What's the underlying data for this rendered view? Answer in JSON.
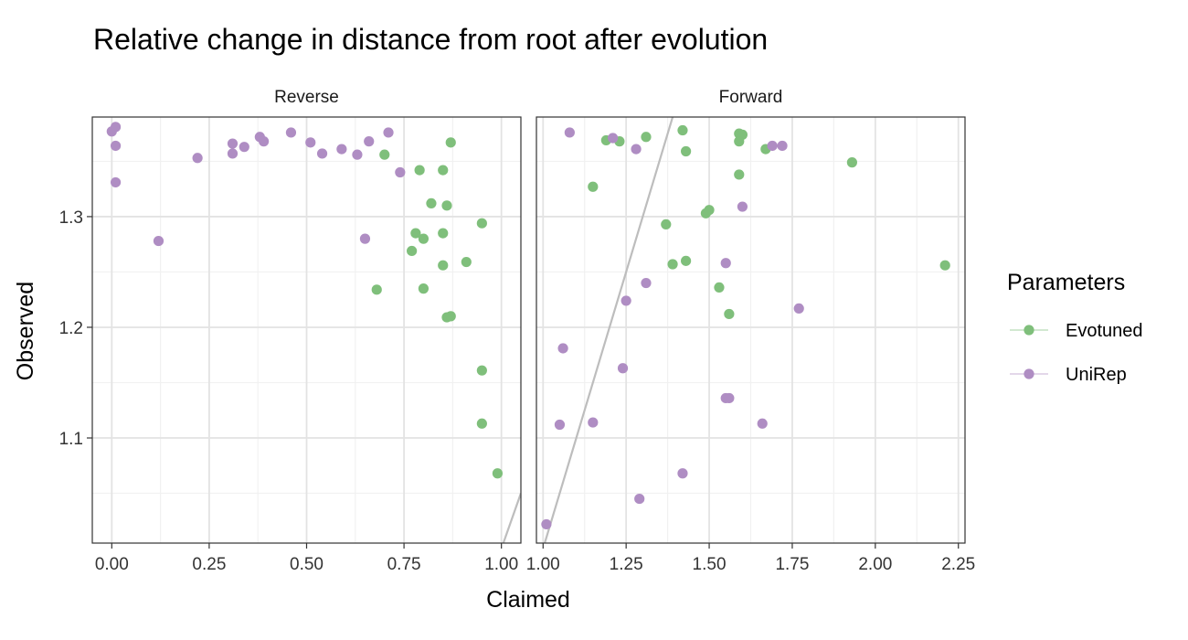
{
  "chart_data": {
    "type": "scatter",
    "title": "Relative change in distance from root after evolution",
    "xlabel": "Claimed",
    "ylabel": "Observed",
    "ylim": [
      1.005,
      1.39
    ],
    "y_ticks": [
      1.1,
      1.2,
      1.3
    ],
    "y_tick_labels": [
      "1.1",
      "1.2",
      "1.3"
    ],
    "grid": true,
    "legend": {
      "title": "Parameters",
      "position": "right",
      "entries": [
        {
          "name": "Evotuned",
          "color": "#7fbf7b"
        },
        {
          "name": "UniRep",
          "color": "#af8dc3"
        }
      ]
    },
    "panels": [
      {
        "label": "Reverse",
        "xlim": [
          -0.05,
          1.05
        ],
        "x_ticks": [
          0,
          0.25,
          0.5,
          0.75,
          1.0
        ],
        "x_tick_labels": [
          "0.00",
          "0.25",
          "0.50",
          "0.75",
          "1.00"
        ],
        "reference_line": {
          "slope": 1,
          "intercept": 0,
          "color": "#bdbdbd"
        },
        "series": [
          {
            "name": "Evotuned",
            "x": [
              0.7,
              0.87,
              0.79,
              0.85,
              0.82,
              0.86,
              0.78,
              0.8,
              0.85,
              0.77,
              0.95,
              0.85,
              0.91,
              0.68,
              0.8,
              0.86,
              0.87,
              0.95,
              0.95,
              0.99
            ],
            "y": [
              1.356,
              1.367,
              1.342,
              1.342,
              1.312,
              1.31,
              1.285,
              1.28,
              1.285,
              1.269,
              1.294,
              1.256,
              1.259,
              1.234,
              1.235,
              1.209,
              1.21,
              1.161,
              1.113,
              1.068
            ]
          },
          {
            "name": "UniRep",
            "x": [
              0.0,
              0.01,
              0.01,
              0.01,
              0.12,
              0.22,
              0.31,
              0.31,
              0.34,
              0.38,
              0.39,
              0.46,
              0.51,
              0.54,
              0.59,
              0.63,
              0.66,
              0.71,
              0.74,
              0.65
            ],
            "y": [
              1.377,
              1.381,
              1.364,
              1.331,
              1.278,
              1.353,
              1.366,
              1.357,
              1.363,
              1.372,
              1.368,
              1.376,
              1.367,
              1.357,
              1.361,
              1.356,
              1.368,
              1.376,
              1.34,
              1.28
            ]
          }
        ]
      },
      {
        "label": "Forward",
        "xlim": [
          0.98,
          2.27
        ],
        "x_ticks": [
          1.0,
          1.25,
          1.5,
          1.75,
          2.0,
          2.25
        ],
        "x_tick_labels": [
          "1.00",
          "1.25",
          "1.50",
          "1.75",
          "2.00",
          "2.25"
        ],
        "reference_line": {
          "slope": 1,
          "intercept": 0,
          "color": "#bdbdbd"
        },
        "series": [
          {
            "name": "Evotuned",
            "x": [
              1.19,
              1.23,
              1.31,
              1.42,
              1.43,
              1.59,
              1.6,
              1.59,
              1.67,
              1.93,
              1.15,
              1.59,
              1.37,
              1.49,
              1.5,
              1.39,
              1.43,
              1.53,
              1.56,
              2.21
            ],
            "y": [
              1.369,
              1.368,
              1.372,
              1.378,
              1.359,
              1.375,
              1.374,
              1.368,
              1.361,
              1.349,
              1.327,
              1.338,
              1.293,
              1.303,
              1.306,
              1.257,
              1.26,
              1.236,
              1.212,
              1.256
            ]
          },
          {
            "name": "UniRep",
            "x": [
              1.08,
              1.21,
              1.28,
              1.69,
              1.72,
              1.6,
              1.55,
              1.31,
              1.25,
              1.77,
              1.06,
              1.24,
              1.55,
              1.56,
              1.05,
              1.15,
              1.66,
              1.42,
              1.29,
              1.01
            ],
            "y": [
              1.376,
              1.371,
              1.361,
              1.364,
              1.364,
              1.309,
              1.258,
              1.24,
              1.224,
              1.217,
              1.181,
              1.163,
              1.136,
              1.136,
              1.112,
              1.114,
              1.113,
              1.068,
              1.045,
              1.022
            ]
          }
        ]
      }
    ]
  }
}
